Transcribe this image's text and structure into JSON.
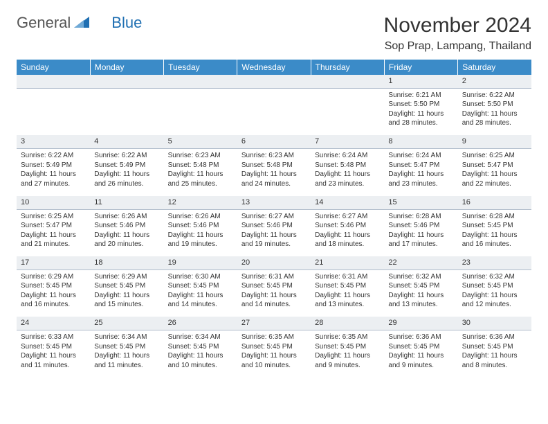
{
  "logo": {
    "text1": "General",
    "text2": "Blue",
    "icon_color": "#1f6fb2"
  },
  "title": "November 2024",
  "location": "Sop Prap, Lampang, Thailand",
  "colors": {
    "header_bg": "#3b8bc8",
    "header_text": "#ffffff",
    "daynum_bg": "#eceff2",
    "daynum_border": "#b0bccb",
    "text": "#333333",
    "background": "#ffffff"
  },
  "day_names": [
    "Sunday",
    "Monday",
    "Tuesday",
    "Wednesday",
    "Thursday",
    "Friday",
    "Saturday"
  ],
  "weeks": [
    [
      {
        "n": "",
        "lines": []
      },
      {
        "n": "",
        "lines": []
      },
      {
        "n": "",
        "lines": []
      },
      {
        "n": "",
        "lines": []
      },
      {
        "n": "",
        "lines": []
      },
      {
        "n": "1",
        "lines": [
          "Sunrise: 6:21 AM",
          "Sunset: 5:50 PM",
          "Daylight: 11 hours and 28 minutes."
        ]
      },
      {
        "n": "2",
        "lines": [
          "Sunrise: 6:22 AM",
          "Sunset: 5:50 PM",
          "Daylight: 11 hours and 28 minutes."
        ]
      }
    ],
    [
      {
        "n": "3",
        "lines": [
          "Sunrise: 6:22 AM",
          "Sunset: 5:49 PM",
          "Daylight: 11 hours and 27 minutes."
        ]
      },
      {
        "n": "4",
        "lines": [
          "Sunrise: 6:22 AM",
          "Sunset: 5:49 PM",
          "Daylight: 11 hours and 26 minutes."
        ]
      },
      {
        "n": "5",
        "lines": [
          "Sunrise: 6:23 AM",
          "Sunset: 5:48 PM",
          "Daylight: 11 hours and 25 minutes."
        ]
      },
      {
        "n": "6",
        "lines": [
          "Sunrise: 6:23 AM",
          "Sunset: 5:48 PM",
          "Daylight: 11 hours and 24 minutes."
        ]
      },
      {
        "n": "7",
        "lines": [
          "Sunrise: 6:24 AM",
          "Sunset: 5:48 PM",
          "Daylight: 11 hours and 23 minutes."
        ]
      },
      {
        "n": "8",
        "lines": [
          "Sunrise: 6:24 AM",
          "Sunset: 5:47 PM",
          "Daylight: 11 hours and 23 minutes."
        ]
      },
      {
        "n": "9",
        "lines": [
          "Sunrise: 6:25 AM",
          "Sunset: 5:47 PM",
          "Daylight: 11 hours and 22 minutes."
        ]
      }
    ],
    [
      {
        "n": "10",
        "lines": [
          "Sunrise: 6:25 AM",
          "Sunset: 5:47 PM",
          "Daylight: 11 hours and 21 minutes."
        ]
      },
      {
        "n": "11",
        "lines": [
          "Sunrise: 6:26 AM",
          "Sunset: 5:46 PM",
          "Daylight: 11 hours and 20 minutes."
        ]
      },
      {
        "n": "12",
        "lines": [
          "Sunrise: 6:26 AM",
          "Sunset: 5:46 PM",
          "Daylight: 11 hours and 19 minutes."
        ]
      },
      {
        "n": "13",
        "lines": [
          "Sunrise: 6:27 AM",
          "Sunset: 5:46 PM",
          "Daylight: 11 hours and 19 minutes."
        ]
      },
      {
        "n": "14",
        "lines": [
          "Sunrise: 6:27 AM",
          "Sunset: 5:46 PM",
          "Daylight: 11 hours and 18 minutes."
        ]
      },
      {
        "n": "15",
        "lines": [
          "Sunrise: 6:28 AM",
          "Sunset: 5:46 PM",
          "Daylight: 11 hours and 17 minutes."
        ]
      },
      {
        "n": "16",
        "lines": [
          "Sunrise: 6:28 AM",
          "Sunset: 5:45 PM",
          "Daylight: 11 hours and 16 minutes."
        ]
      }
    ],
    [
      {
        "n": "17",
        "lines": [
          "Sunrise: 6:29 AM",
          "Sunset: 5:45 PM",
          "Daylight: 11 hours and 16 minutes."
        ]
      },
      {
        "n": "18",
        "lines": [
          "Sunrise: 6:29 AM",
          "Sunset: 5:45 PM",
          "Daylight: 11 hours and 15 minutes."
        ]
      },
      {
        "n": "19",
        "lines": [
          "Sunrise: 6:30 AM",
          "Sunset: 5:45 PM",
          "Daylight: 11 hours and 14 minutes."
        ]
      },
      {
        "n": "20",
        "lines": [
          "Sunrise: 6:31 AM",
          "Sunset: 5:45 PM",
          "Daylight: 11 hours and 14 minutes."
        ]
      },
      {
        "n": "21",
        "lines": [
          "Sunrise: 6:31 AM",
          "Sunset: 5:45 PM",
          "Daylight: 11 hours and 13 minutes."
        ]
      },
      {
        "n": "22",
        "lines": [
          "Sunrise: 6:32 AM",
          "Sunset: 5:45 PM",
          "Daylight: 11 hours and 13 minutes."
        ]
      },
      {
        "n": "23",
        "lines": [
          "Sunrise: 6:32 AM",
          "Sunset: 5:45 PM",
          "Daylight: 11 hours and 12 minutes."
        ]
      }
    ],
    [
      {
        "n": "24",
        "lines": [
          "Sunrise: 6:33 AM",
          "Sunset: 5:45 PM",
          "Daylight: 11 hours and 11 minutes."
        ]
      },
      {
        "n": "25",
        "lines": [
          "Sunrise: 6:34 AM",
          "Sunset: 5:45 PM",
          "Daylight: 11 hours and 11 minutes."
        ]
      },
      {
        "n": "26",
        "lines": [
          "Sunrise: 6:34 AM",
          "Sunset: 5:45 PM",
          "Daylight: 11 hours and 10 minutes."
        ]
      },
      {
        "n": "27",
        "lines": [
          "Sunrise: 6:35 AM",
          "Sunset: 5:45 PM",
          "Daylight: 11 hours and 10 minutes."
        ]
      },
      {
        "n": "28",
        "lines": [
          "Sunrise: 6:35 AM",
          "Sunset: 5:45 PM",
          "Daylight: 11 hours and 9 minutes."
        ]
      },
      {
        "n": "29",
        "lines": [
          "Sunrise: 6:36 AM",
          "Sunset: 5:45 PM",
          "Daylight: 11 hours and 9 minutes."
        ]
      },
      {
        "n": "30",
        "lines": [
          "Sunrise: 6:36 AM",
          "Sunset: 5:45 PM",
          "Daylight: 11 hours and 8 minutes."
        ]
      }
    ]
  ]
}
